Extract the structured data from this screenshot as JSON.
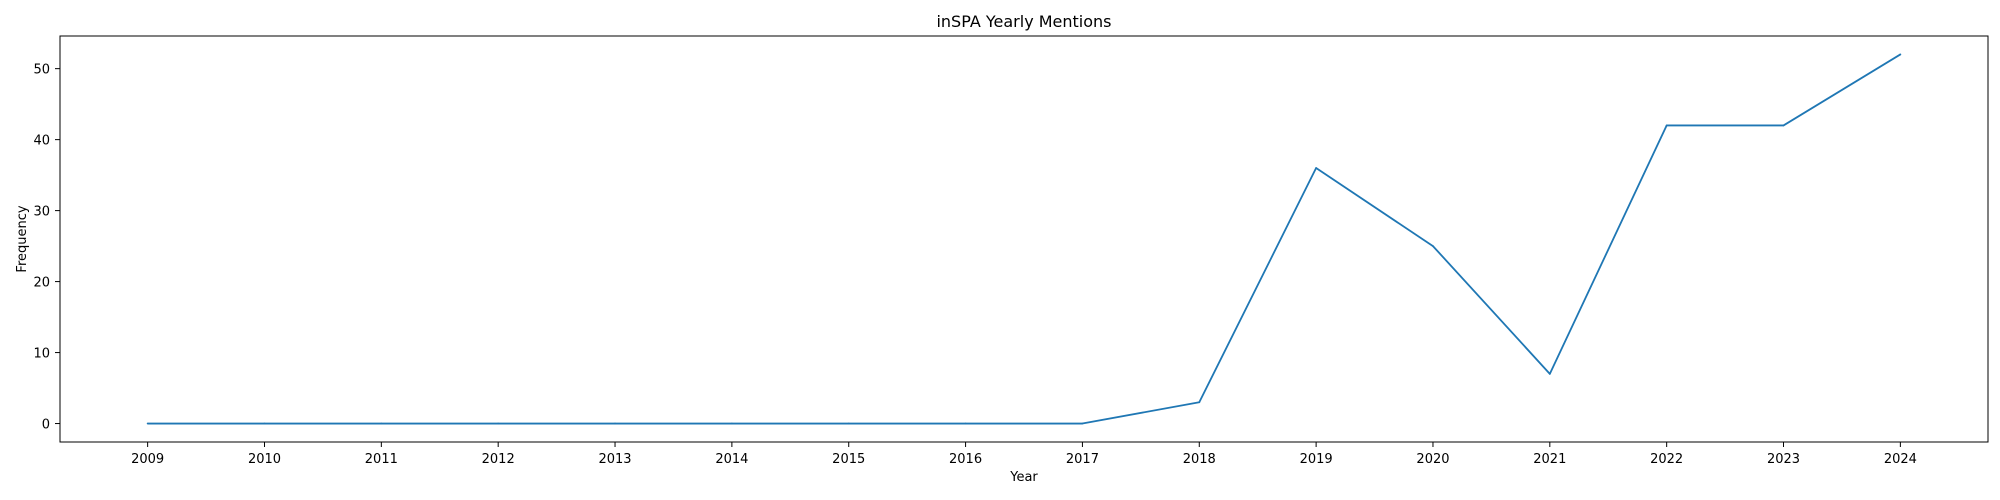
{
  "chart_data": {
    "type": "line",
    "title": "inSPA Yearly Mentions",
    "xlabel": "Year",
    "ylabel": "Frequency",
    "x": [
      2009,
      2010,
      2011,
      2012,
      2013,
      2014,
      2015,
      2016,
      2017,
      2018,
      2019,
      2020,
      2021,
      2022,
      2023,
      2024
    ],
    "series": [
      {
        "values": [
          0,
          0,
          0,
          0,
          0,
          0,
          0,
          0,
          0,
          3,
          36,
          25,
          7,
          42,
          42,
          52
        ],
        "color": "#1f77b4"
      }
    ],
    "xlim": [
      2008.25,
      2024.75
    ],
    "ylim": [
      -2.6,
      54.6
    ],
    "xticks": [
      2009,
      2010,
      2011,
      2012,
      2013,
      2014,
      2015,
      2016,
      2017,
      2018,
      2019,
      2020,
      2021,
      2022,
      2023,
      2024
    ],
    "yticks": [
      0,
      10,
      20,
      30,
      40,
      50
    ],
    "grid": false,
    "legend": false
  }
}
